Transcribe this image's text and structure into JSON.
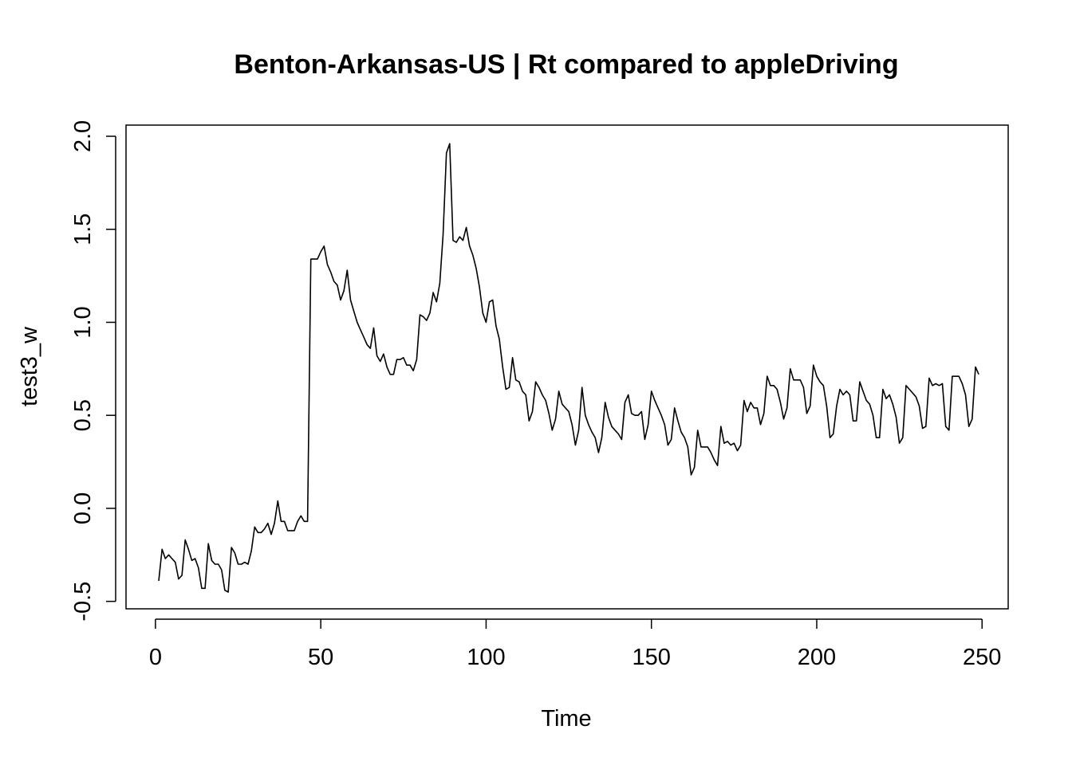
{
  "chart_data": {
    "type": "line",
    "title": "Benton-Arkansas-US | Rt compared to appleDriving",
    "xlabel": "Time",
    "ylabel": "test3_w",
    "xlim": [
      -8.9,
      257.9
    ],
    "ylim": [
      -0.54,
      2.06
    ],
    "x_ticks": [
      0,
      50,
      100,
      150,
      200,
      250
    ],
    "y_ticks": [
      -0.5,
      0.0,
      0.5,
      1.0,
      1.5,
      2.0
    ],
    "x_tick_labels": [
      "0",
      "50",
      "100",
      "150",
      "200",
      "250"
    ],
    "y_tick_labels": [
      "-0.5",
      "0.0",
      "0.5",
      "1.0",
      "1.5",
      "2.0"
    ],
    "grid": false,
    "series": [
      {
        "color": "#000000",
        "x_start": 1,
        "values": [
          -0.39,
          -0.22,
          -0.27,
          -0.25,
          -0.27,
          -0.29,
          -0.38,
          -0.36,
          -0.17,
          -0.22,
          -0.28,
          -0.27,
          -0.32,
          -0.43,
          -0.43,
          -0.19,
          -0.28,
          -0.3,
          -0.3,
          -0.33,
          -0.44,
          -0.45,
          -0.21,
          -0.24,
          -0.3,
          -0.3,
          -0.29,
          -0.3,
          -0.23,
          -0.1,
          -0.13,
          -0.13,
          -0.11,
          -0.08,
          -0.14,
          -0.08,
          0.04,
          -0.07,
          -0.07,
          -0.12,
          -0.12,
          -0.12,
          -0.07,
          -0.04,
          -0.07,
          -0.07,
          1.34,
          1.34,
          1.34,
          1.38,
          1.41,
          1.31,
          1.27,
          1.22,
          1.2,
          1.12,
          1.17,
          1.28,
          1.12,
          1.06,
          1.0,
          0.96,
          0.92,
          0.88,
          0.86,
          0.97,
          0.82,
          0.79,
          0.83,
          0.76,
          0.72,
          0.72,
          0.8,
          0.8,
          0.81,
          0.77,
          0.77,
          0.74,
          0.8,
          1.04,
          1.03,
          1.01,
          1.05,
          1.16,
          1.11,
          1.21,
          1.47,
          1.91,
          1.96,
          1.44,
          1.43,
          1.46,
          1.44,
          1.51,
          1.41,
          1.36,
          1.29,
          1.19,
          1.05,
          1.0,
          1.11,
          1.12,
          0.98,
          0.91,
          0.76,
          0.64,
          0.65,
          0.81,
          0.69,
          0.68,
          0.63,
          0.61,
          0.47,
          0.52,
          0.68,
          0.65,
          0.61,
          0.58,
          0.51,
          0.42,
          0.48,
          0.63,
          0.56,
          0.54,
          0.52,
          0.45,
          0.34,
          0.42,
          0.65,
          0.5,
          0.45,
          0.41,
          0.38,
          0.3,
          0.38,
          0.57,
          0.49,
          0.44,
          0.42,
          0.4,
          0.37,
          0.57,
          0.61,
          0.51,
          0.5,
          0.5,
          0.52,
          0.37,
          0.45,
          0.63,
          0.58,
          0.54,
          0.5,
          0.45,
          0.34,
          0.37,
          0.54,
          0.47,
          0.41,
          0.38,
          0.33,
          0.18,
          0.22,
          0.42,
          0.33,
          0.33,
          0.33,
          0.3,
          0.26,
          0.23,
          0.44,
          0.35,
          0.36,
          0.34,
          0.35,
          0.31,
          0.34,
          0.58,
          0.52,
          0.57,
          0.54,
          0.54,
          0.45,
          0.51,
          0.71,
          0.66,
          0.66,
          0.64,
          0.57,
          0.48,
          0.54,
          0.75,
          0.69,
          0.69,
          0.69,
          0.65,
          0.51,
          0.55,
          0.77,
          0.71,
          0.68,
          0.66,
          0.55,
          0.38,
          0.4,
          0.55,
          0.64,
          0.61,
          0.63,
          0.61,
          0.47,
          0.47,
          0.68,
          0.63,
          0.58,
          0.56,
          0.5,
          0.38,
          0.38,
          0.64,
          0.59,
          0.61,
          0.56,
          0.49,
          0.35,
          0.38,
          0.66,
          0.64,
          0.62,
          0.6,
          0.55,
          0.43,
          0.44,
          0.7,
          0.66,
          0.67,
          0.66,
          0.67,
          0.44,
          0.42,
          0.71,
          0.71,
          0.71,
          0.67,
          0.61,
          0.44,
          0.48,
          0.76,
          0.72
        ]
      }
    ]
  }
}
